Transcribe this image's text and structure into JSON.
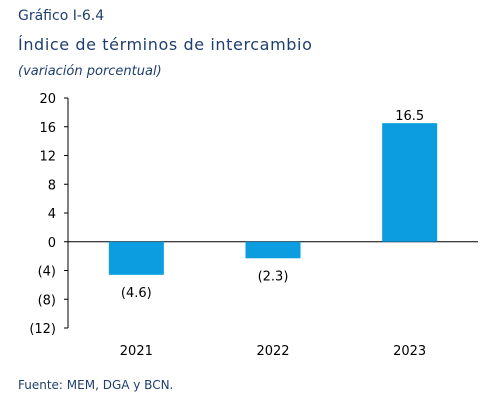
{
  "header": {
    "figure_number": "Gráfico I-6.4",
    "title": "Índice de términos de intercambio",
    "subtitle": "(variación porcentual)"
  },
  "footer": {
    "source": "Fuente: MEM, DGA y BCN."
  },
  "colors": {
    "bar": "#0b9de0",
    "axis": "#000000",
    "text": "#1f3f6e"
  },
  "chart_data": {
    "type": "bar",
    "categories": [
      "2021",
      "2022",
      "2023"
    ],
    "values": [
      -4.6,
      -2.3,
      16.5
    ],
    "data_labels": [
      "(4.6)",
      "(2.3)",
      "16.5"
    ],
    "ylim": [
      -12,
      20
    ],
    "yticks": [
      20,
      16,
      12,
      8,
      4,
      0,
      -4,
      -8,
      -12
    ],
    "ytick_labels": [
      "20",
      "16",
      "12",
      "8",
      "4",
      "0",
      "(4)",
      "(8)",
      "(12)"
    ],
    "xlabel": "",
    "ylabel": "",
    "grid": false,
    "legend": "none"
  }
}
